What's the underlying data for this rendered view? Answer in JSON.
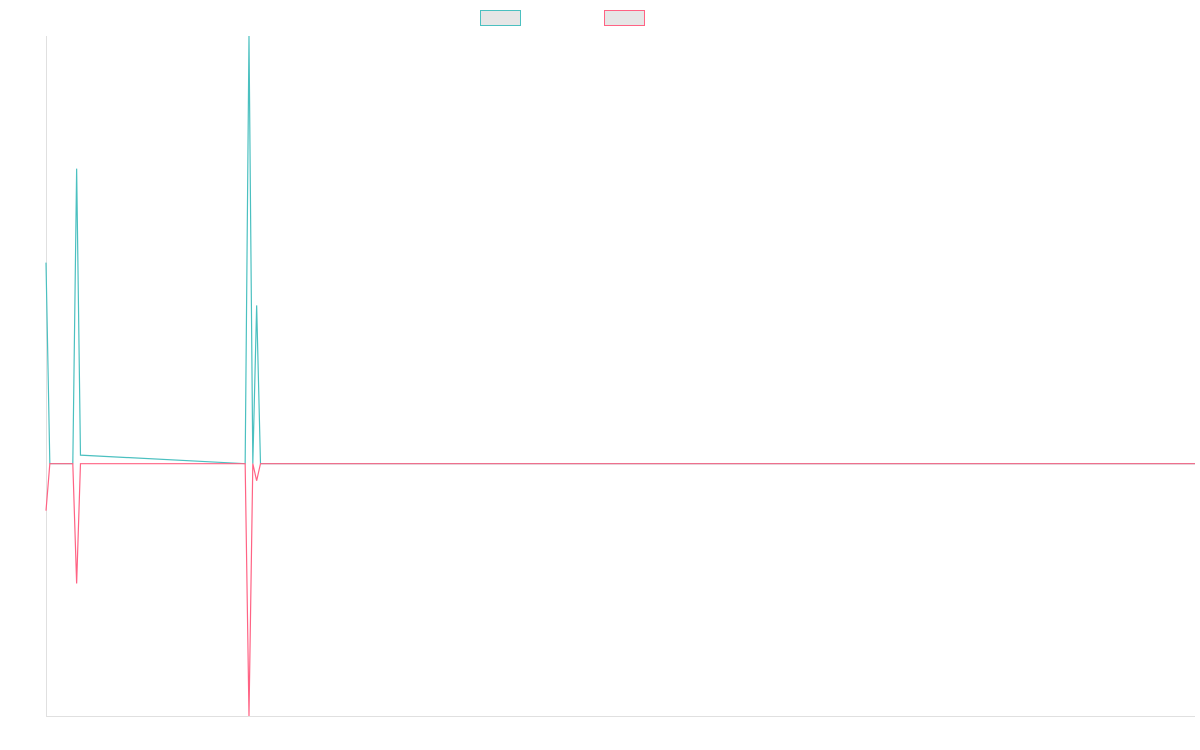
{
  "chart_data": {
    "type": "line",
    "x": [
      0,
      1,
      7,
      8,
      9,
      52,
      53,
      54,
      55,
      56,
      300
    ],
    "xlim": [
      0,
      300
    ],
    "ylim": [
      -59,
      100
    ],
    "series": [
      {
        "color": "#4bc0c0",
        "values": [
          47,
          0,
          0,
          69,
          2,
          0,
          100,
          0,
          37,
          0,
          0
        ]
      },
      {
        "color": "#ff6384",
        "values": [
          -11,
          0,
          0,
          -28,
          0,
          0,
          -59,
          0,
          -4,
          0,
          0
        ]
      }
    ]
  }
}
